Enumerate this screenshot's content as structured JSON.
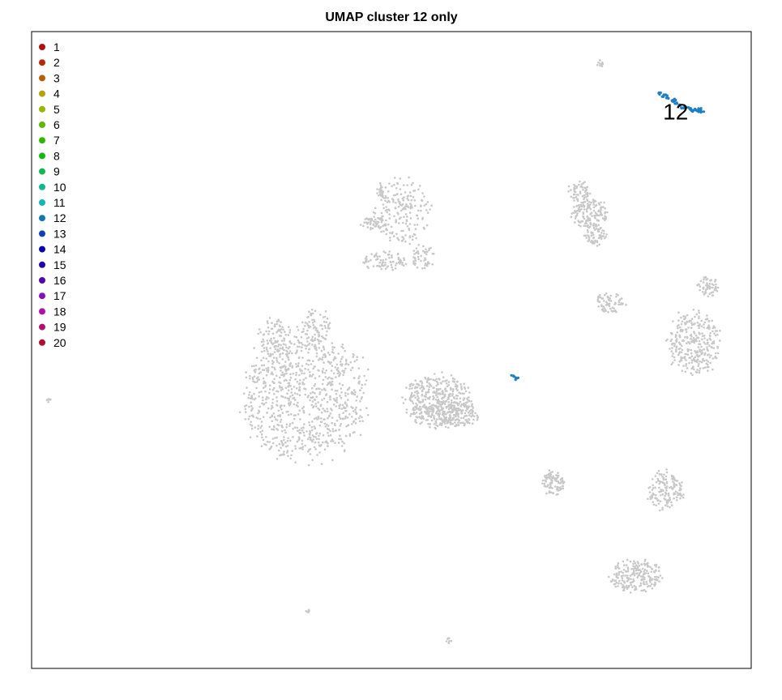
{
  "chart_data": {
    "type": "scatter",
    "title": "UMAP cluster 12 only",
    "xlabel": "",
    "ylabel": "",
    "xlim": [
      0,
      100
    ],
    "ylim": [
      0,
      100
    ],
    "grid": false,
    "legend_position": "top-left",
    "highlighted_cluster": "12",
    "highlight_label": "12",
    "highlight_color": "#1f7fc4",
    "background_point_color": "#c8c8c8",
    "legend": [
      {
        "label": "1",
        "color": "#b21010"
      },
      {
        "label": "2",
        "color": "#b22a08"
      },
      {
        "label": "3",
        "color": "#b56008"
      },
      {
        "label": "4",
        "color": "#b8a000"
      },
      {
        "label": "5",
        "color": "#98b800"
      },
      {
        "label": "6",
        "color": "#60b800"
      },
      {
        "label": "7",
        "color": "#30b800"
      },
      {
        "label": "8",
        "color": "#10b810"
      },
      {
        "label": "9",
        "color": "#10b850"
      },
      {
        "label": "10",
        "color": "#10b890"
      },
      {
        "label": "11",
        "color": "#10b8b8"
      },
      {
        "label": "12",
        "color": "#1078b0"
      },
      {
        "label": "13",
        "color": "#1040b8"
      },
      {
        "label": "14",
        "color": "#0808a8"
      },
      {
        "label": "15",
        "color": "#2008b0"
      },
      {
        "label": "16",
        "color": "#5008b0"
      },
      {
        "label": "17",
        "color": "#8810b8"
      },
      {
        "label": "18",
        "color": "#b010a8"
      },
      {
        "label": "19",
        "color": "#b01070"
      },
      {
        "label": "20",
        "color": "#b01030"
      }
    ],
    "background_clusters": [
      {
        "cx": 38,
        "cy": 43,
        "rx": 8.5,
        "ry": 10,
        "n": 900
      },
      {
        "cx": 33.5,
        "cy": 52,
        "rx": 2,
        "ry": 3,
        "n": 80
      },
      {
        "cx": 39.5,
        "cy": 54,
        "rx": 2,
        "ry": 2.5,
        "n": 60
      },
      {
        "cx": 56.5,
        "cy": 42,
        "rx": 4.5,
        "ry": 4,
        "n": 450
      },
      {
        "cx": 59.5,
        "cy": 40,
        "rx": 2.5,
        "ry": 2,
        "n": 120
      },
      {
        "cx": 77.5,
        "cy": 71.5,
        "rx": 2.5,
        "ry": 2.5,
        "n": 160
      },
      {
        "cx": 78.5,
        "cy": 68,
        "rx": 1.5,
        "ry": 1.5,
        "n": 60
      },
      {
        "cx": 76,
        "cy": 75,
        "rx": 1.5,
        "ry": 1.5,
        "n": 50
      },
      {
        "cx": 72.5,
        "cy": 29,
        "rx": 1.5,
        "ry": 2,
        "n": 90
      },
      {
        "cx": 92,
        "cy": 51,
        "rx": 3.5,
        "ry": 5,
        "n": 300
      },
      {
        "cx": 94,
        "cy": 60,
        "rx": 1.5,
        "ry": 1.5,
        "n": 60
      },
      {
        "cx": 88,
        "cy": 28,
        "rx": 2.5,
        "ry": 3,
        "n": 140
      },
      {
        "cx": 84,
        "cy": 14.5,
        "rx": 3.5,
        "ry": 2.5,
        "n": 200
      },
      {
        "cx": 51.5,
        "cy": 72,
        "rx": 4,
        "ry": 5,
        "n": 200
      },
      {
        "cx": 49,
        "cy": 64,
        "rx": 3,
        "ry": 1.5,
        "n": 80
      },
      {
        "cx": 47.5,
        "cy": 70,
        "rx": 2,
        "ry": 1,
        "n": 50
      },
      {
        "cx": 54.5,
        "cy": 64.5,
        "rx": 1.5,
        "ry": 2,
        "n": 50
      },
      {
        "cx": 80.5,
        "cy": 57.5,
        "rx": 2,
        "ry": 1.5,
        "n": 70
      },
      {
        "cx": 48.5,
        "cy": 75,
        "rx": 0.5,
        "ry": 1,
        "n": 15
      },
      {
        "cx": 2.5,
        "cy": 42,
        "rx": 0.4,
        "ry": 0.3,
        "n": 6
      },
      {
        "cx": 38.5,
        "cy": 9,
        "rx": 0.4,
        "ry": 0.3,
        "n": 6
      },
      {
        "cx": 58,
        "cy": 4.5,
        "rx": 0.6,
        "ry": 0.6,
        "n": 8
      },
      {
        "cx": 79,
        "cy": 95,
        "rx": 0.6,
        "ry": 0.5,
        "n": 10
      }
    ],
    "highlight_points": [
      {
        "x": 87.2,
        "y": 90.3
      },
      {
        "x": 87.8,
        "y": 89.9
      },
      {
        "x": 88.4,
        "y": 89.5
      },
      {
        "x": 89.0,
        "y": 89.1
      },
      {
        "x": 89.6,
        "y": 88.7
      },
      {
        "x": 90.2,
        "y": 88.4
      },
      {
        "x": 90.8,
        "y": 88.1
      },
      {
        "x": 91.4,
        "y": 87.9
      },
      {
        "x": 92.0,
        "y": 87.7
      },
      {
        "x": 92.6,
        "y": 87.6
      },
      {
        "x": 93.2,
        "y": 87.5
      },
      {
        "x": 88.1,
        "y": 90.0
      },
      {
        "x": 89.3,
        "y": 89.3
      },
      {
        "x": 90.5,
        "y": 88.0
      },
      {
        "x": 91.7,
        "y": 87.6
      },
      {
        "x": 92.9,
        "y": 87.8
      },
      {
        "x": 66.9,
        "y": 46.0
      },
      {
        "x": 67.4,
        "y": 45.5
      }
    ]
  }
}
